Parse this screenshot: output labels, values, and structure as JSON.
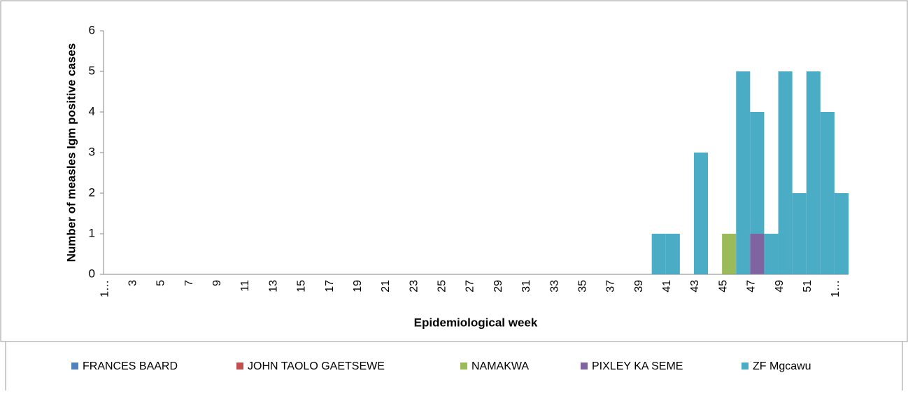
{
  "chart_data": {
    "type": "stacked_bar",
    "y_label": "Number of measles Igm positive cases",
    "x_label": "Epidemiological week",
    "categories": [
      "1…",
      null,
      "3",
      null,
      "5",
      null,
      "7",
      null,
      "9",
      null,
      "11",
      null,
      "13",
      null,
      "15",
      null,
      "17",
      null,
      "19",
      null,
      "21",
      null,
      "23",
      null,
      "25",
      null,
      "27",
      null,
      "29",
      null,
      "31",
      null,
      "33",
      null,
      "35",
      null,
      "37",
      null,
      "39",
      null,
      "41",
      null,
      "43",
      null,
      "45",
      null,
      "47",
      null,
      "49",
      null,
      "51",
      null,
      "1…"
    ],
    "series": [
      {
        "name": "FRANCES BAARD",
        "color": "#4f81bd",
        "values": [
          0,
          0,
          0,
          0,
          0,
          0,
          0,
          0,
          0,
          0,
          0,
          0,
          0,
          0,
          0,
          0,
          0,
          0,
          0,
          0,
          0,
          0,
          0,
          0,
          0,
          0,
          0,
          0,
          0,
          0,
          0,
          0,
          0,
          0,
          0,
          0,
          0,
          0,
          0,
          0,
          0,
          0,
          0,
          0,
          0,
          0,
          0,
          0,
          0,
          0,
          0,
          0,
          0
        ]
      },
      {
        "name": "JOHN TAOLO GAETSEWE",
        "color": "#c0504d",
        "values": [
          0,
          0,
          0,
          0,
          0,
          0,
          0,
          0,
          0,
          0,
          0,
          0,
          0,
          0,
          0,
          0,
          0,
          0,
          0,
          0,
          0,
          0,
          0,
          0,
          0,
          0,
          0,
          0,
          0,
          0,
          0,
          0,
          0,
          0,
          0,
          0,
          0,
          0,
          0,
          0,
          0,
          0,
          0,
          0,
          0,
          0,
          0,
          0,
          0,
          0,
          0,
          0,
          0
        ]
      },
      {
        "name": "NAMAKWA",
        "color": "#9bbb59",
        "values": [
          0,
          0,
          0,
          0,
          0,
          0,
          0,
          0,
          0,
          0,
          0,
          0,
          0,
          0,
          0,
          0,
          0,
          0,
          0,
          0,
          0,
          0,
          0,
          0,
          0,
          0,
          0,
          0,
          0,
          0,
          0,
          0,
          0,
          0,
          0,
          0,
          0,
          0,
          0,
          0,
          0,
          0,
          0,
          0,
          1,
          0,
          0,
          0,
          0,
          0,
          0,
          0,
          0
        ]
      },
      {
        "name": "PIXLEY KA SEME",
        "color": "#8064a2",
        "values": [
          0,
          0,
          0,
          0,
          0,
          0,
          0,
          0,
          0,
          0,
          0,
          0,
          0,
          0,
          0,
          0,
          0,
          0,
          0,
          0,
          0,
          0,
          0,
          0,
          0,
          0,
          0,
          0,
          0,
          0,
          0,
          0,
          0,
          0,
          0,
          0,
          0,
          0,
          0,
          0,
          0,
          0,
          0,
          0,
          0,
          0,
          1,
          0,
          0,
          0,
          0,
          0,
          0
        ]
      },
      {
        "name": "ZF Mgcawu",
        "color": "#4bacc6",
        "values": [
          0,
          0,
          0,
          0,
          0,
          0,
          0,
          0,
          0,
          0,
          0,
          0,
          0,
          0,
          0,
          0,
          0,
          0,
          0,
          0,
          0,
          0,
          0,
          0,
          0,
          0,
          0,
          0,
          0,
          0,
          0,
          0,
          0,
          0,
          0,
          0,
          0,
          0,
          0,
          1,
          1,
          0,
          3,
          0,
          0,
          5,
          3,
          1,
          5,
          2,
          5,
          4,
          2
        ]
      }
    ],
    "ylim": [
      0,
      6
    ],
    "yticks": [
      0,
      1,
      2,
      3,
      4,
      5,
      6
    ],
    "legend": "bottom"
  }
}
